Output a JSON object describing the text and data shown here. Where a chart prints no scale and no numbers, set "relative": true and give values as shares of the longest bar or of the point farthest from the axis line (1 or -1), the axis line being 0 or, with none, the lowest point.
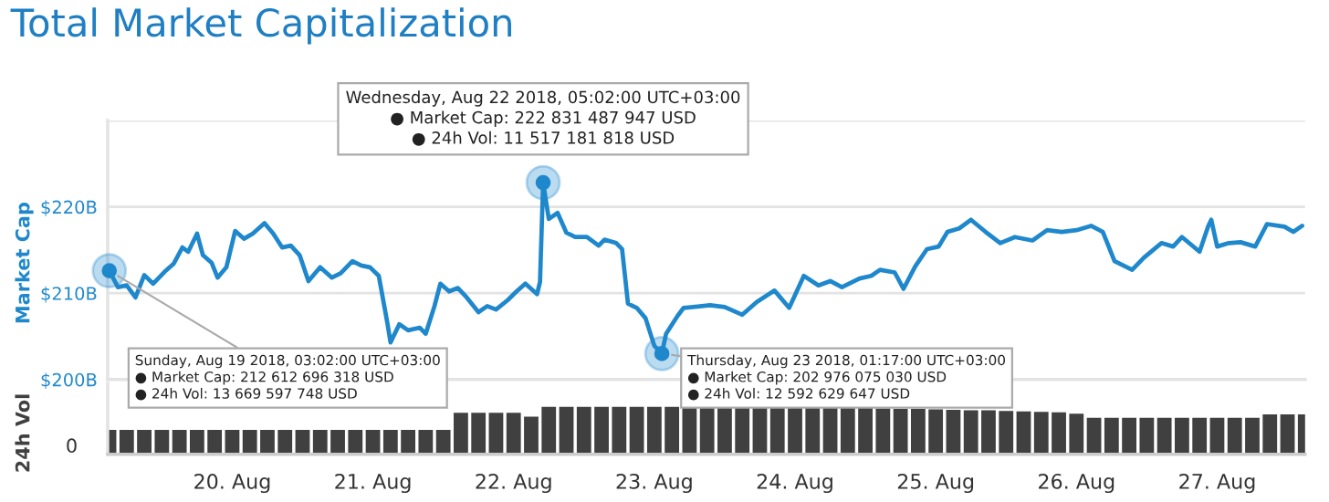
{
  "chart_data": [
    {
      "type": "line",
      "title": "Total Market Capitalization",
      "ylabel": "Market Cap",
      "tick_labels": "y",
      "grid": "y",
      "legend": false,
      "marker": "none",
      "line_style": "solid",
      "xlim": [
        "2018-08-19T02:45",
        "2018-08-27T15:00"
      ],
      "ylim": [
        200,
        230
      ],
      "yticks": [
        {
          "value": 200,
          "label": "$200B"
        },
        {
          "value": 210,
          "label": "$210B"
        },
        {
          "value": 220,
          "label": "$220B"
        },
        {
          "value": 230,
          "label": null
        }
      ],
      "series": [
        {
          "color": "#1f88cc",
          "x": [
            "2018-08-19T03:02",
            "2018-08-19T04:30",
            "2018-08-19T06:00",
            "2018-08-19T07:30",
            "2018-08-19T09:00",
            "2018-08-19T10:30",
            "2018-08-19T12:30",
            "2018-08-19T14:00",
            "2018-08-19T15:30",
            "2018-08-19T16:30",
            "2018-08-19T18:00",
            "2018-08-19T19:00",
            "2018-08-19T20:30",
            "2018-08-19T21:30",
            "2018-08-19T23:00",
            "2018-08-20T00:30",
            "2018-08-20T02:00",
            "2018-08-20T03:30",
            "2018-08-20T05:30",
            "2018-08-20T07:00",
            "2018-08-20T08:30",
            "2018-08-20T10:00",
            "2018-08-20T11:30",
            "2018-08-20T13:00",
            "2018-08-20T15:00",
            "2018-08-20T17:00",
            "2018-08-20T18:30",
            "2018-08-20T20:30",
            "2018-08-20T22:00",
            "2018-08-20T23:30",
            "2018-08-21T01:00",
            "2018-08-21T02:30",
            "2018-08-21T03:00",
            "2018-08-21T04:30",
            "2018-08-21T06:00",
            "2018-08-21T08:00",
            "2018-08-21T09:00",
            "2018-08-21T10:30",
            "2018-08-21T11:30",
            "2018-08-21T13:00",
            "2018-08-21T14:30",
            "2018-08-21T16:00",
            "2018-08-21T18:00",
            "2018-08-21T19:30",
            "2018-08-21T21:00",
            "2018-08-21T23:00",
            "2018-08-22T00:30",
            "2018-08-22T02:00",
            "2018-08-22T04:00",
            "2018-08-22T04:30",
            "2018-08-22T05:02",
            "2018-08-22T06:00",
            "2018-08-22T07:30",
            "2018-08-22T09:00",
            "2018-08-22T10:30",
            "2018-08-22T12:30",
            "2018-08-22T14:30",
            "2018-08-22T15:30",
            "2018-08-22T17:30",
            "2018-08-22T18:30",
            "2018-08-22T19:30",
            "2018-08-22T21:00",
            "2018-08-22T22:30",
            "2018-08-23T00:00",
            "2018-08-23T01:17",
            "2018-08-23T02:00",
            "2018-08-23T04:00",
            "2018-08-23T05:00",
            "2018-08-23T09:30",
            "2018-08-23T12:00",
            "2018-08-23T15:00",
            "2018-08-23T17:30",
            "2018-08-23T20:30",
            "2018-08-23T23:00",
            "2018-08-24T01:30",
            "2018-08-24T04:00",
            "2018-08-24T06:00",
            "2018-08-24T08:00",
            "2018-08-24T11:00",
            "2018-08-24T13:00",
            "2018-08-24T14:30",
            "2018-08-24T17:00",
            "2018-08-24T18:30",
            "2018-08-24T20:30",
            "2018-08-24T22:30",
            "2018-08-25T00:30",
            "2018-08-25T02:00",
            "2018-08-25T04:00",
            "2018-08-25T06:00",
            "2018-08-25T08:30",
            "2018-08-25T11:00",
            "2018-08-25T13:30",
            "2018-08-25T16:30",
            "2018-08-25T19:00",
            "2018-08-25T21:30",
            "2018-08-26T00:00",
            "2018-08-26T02:30",
            "2018-08-26T04:30",
            "2018-08-26T06:30",
            "2018-08-26T09:30",
            "2018-08-26T11:30",
            "2018-08-26T14:30",
            "2018-08-26T16:30",
            "2018-08-26T18:00",
            "2018-08-26T21:00",
            "2018-08-26T22:30",
            "2018-08-26T23:00",
            "2018-08-27T00:00",
            "2018-08-27T02:00",
            "2018-08-27T04:00",
            "2018-08-27T06:30",
            "2018-08-27T08:30",
            "2018-08-27T11:30",
            "2018-08-27T13:00",
            "2018-08-27T14:30"
          ],
          "values": [
            212.6,
            210.7,
            210.9,
            209.5,
            212.1,
            211.1,
            212.5,
            213.4,
            215.3,
            214.8,
            216.9,
            214.4,
            213.5,
            211.8,
            213.0,
            217.2,
            216.3,
            216.9,
            218.1,
            216.9,
            215.3,
            215.5,
            214.4,
            211.4,
            213.0,
            211.8,
            212.3,
            213.7,
            213.2,
            213.0,
            212.0,
            206.4,
            204.3,
            206.4,
            205.7,
            206.0,
            205.3,
            208.5,
            211.1,
            210.2,
            210.6,
            209.5,
            207.8,
            208.5,
            208.1,
            209.2,
            210.2,
            211.1,
            209.9,
            211.3,
            222.8,
            218.6,
            219.3,
            217.0,
            216.5,
            216.5,
            215.5,
            216.2,
            215.8,
            215.1,
            208.8,
            208.3,
            207.1,
            203.9,
            203.0,
            205.3,
            207.4,
            208.3,
            208.6,
            208.4,
            207.5,
            209.0,
            210.3,
            208.3,
            212.0,
            210.9,
            211.4,
            210.7,
            211.7,
            212.0,
            212.7,
            212.4,
            210.5,
            213.1,
            215.1,
            215.4,
            217.1,
            217.5,
            218.5,
            217.1,
            215.8,
            216.5,
            216.1,
            217.3,
            217.1,
            217.3,
            217.8,
            217.1,
            213.7,
            212.7,
            214.1,
            215.8,
            215.4,
            216.5,
            214.8,
            217.8,
            218.5,
            215.4,
            215.8,
            215.9,
            215.4,
            218.0,
            217.7,
            217.1,
            217.8
          ]
        }
      ],
      "annotations": [
        {
          "text": "Wednesday, Aug 22 2018, 05:02:00 UTC+03:00\n● Market Cap: 222 831 487 947 USD\n● 24h Vol: 11 517 181 818 USD",
          "x": "2018-08-22T05:02",
          "y": 222.8
        },
        {
          "text": "Sunday, Aug 19 2018, 03:02:00 UTC+03:00\n● Market Cap: 212 612 696 318 USD\n● 24h Vol: 13 669 597 748 USD",
          "x": "2018-08-19T03:02",
          "y": 212.6
        },
        {
          "text": "Thursday, Aug 23 2018, 01:17:00 UTC+03:00\n● Market Cap: 202 976 075 030 USD\n● 24h Vol: 12 592 629 647 USD",
          "x": "2018-08-23T01:17",
          "y": 203.0
        }
      ]
    },
    {
      "type": "bar",
      "ylabel": "24h Vol",
      "relative": true,
      "legend": false,
      "grid": false,
      "xlim": [
        "2018-08-19T02:45",
        "2018-08-27T15:00"
      ],
      "xticks": [
        {
          "value": "2018-08-20",
          "label": "20. Aug"
        },
        {
          "value": "2018-08-21",
          "label": "21. Aug"
        },
        {
          "value": "2018-08-22",
          "label": "22. Aug"
        },
        {
          "value": "2018-08-23",
          "label": "23. Aug"
        },
        {
          "value": "2018-08-24",
          "label": "24. Aug"
        },
        {
          "value": "2018-08-25",
          "label": "25. Aug"
        },
        {
          "value": "2018-08-26",
          "label": "26. Aug"
        },
        {
          "value": "2018-08-27",
          "label": "27. Aug"
        }
      ],
      "annotations": [
        "0"
      ],
      "x": [
        "2018-08-19T03:00",
        "2018-08-19T06:00",
        "2018-08-19T09:00",
        "2018-08-19T12:00",
        "2018-08-19T15:00",
        "2018-08-19T18:00",
        "2018-08-19T21:00",
        "2018-08-20T00:00",
        "2018-08-20T03:00",
        "2018-08-20T06:00",
        "2018-08-20T09:00",
        "2018-08-20T12:00",
        "2018-08-20T15:00",
        "2018-08-20T18:00",
        "2018-08-20T21:00",
        "2018-08-21T00:00",
        "2018-08-21T03:00",
        "2018-08-21T06:00",
        "2018-08-21T09:00",
        "2018-08-21T12:00",
        "2018-08-21T15:00",
        "2018-08-21T18:00",
        "2018-08-21T21:00",
        "2018-08-22T00:00",
        "2018-08-22T03:00",
        "2018-08-22T06:00",
        "2018-08-22T09:00",
        "2018-08-22T12:00",
        "2018-08-22T15:00",
        "2018-08-22T18:00",
        "2018-08-22T21:00",
        "2018-08-23T00:00",
        "2018-08-23T03:00",
        "2018-08-23T06:00",
        "2018-08-23T09:00",
        "2018-08-23T12:00",
        "2018-08-23T15:00",
        "2018-08-23T18:00",
        "2018-08-23T21:00",
        "2018-08-24T00:00",
        "2018-08-24T03:00",
        "2018-08-24T06:00",
        "2018-08-24T09:00",
        "2018-08-24T12:00",
        "2018-08-24T15:00",
        "2018-08-24T18:00",
        "2018-08-24T21:00",
        "2018-08-25T00:00",
        "2018-08-25T03:00",
        "2018-08-25T06:00",
        "2018-08-25T09:00",
        "2018-08-25T12:00",
        "2018-08-25T15:00",
        "2018-08-25T18:00",
        "2018-08-25T21:00",
        "2018-08-26T00:00",
        "2018-08-26T03:00",
        "2018-08-26T06:00",
        "2018-08-26T09:00",
        "2018-08-26T12:00",
        "2018-08-26T15:00",
        "2018-08-26T18:00",
        "2018-08-26T21:00",
        "2018-08-27T00:00",
        "2018-08-27T03:00",
        "2018-08-27T06:00",
        "2018-08-27T09:00",
        "2018-08-27T12:00",
        "2018-08-27T15:00"
      ],
      "series": [
        {
          "color": "#404040",
          "values": [
            0.5,
            0.5,
            0.5,
            0.5,
            0.5,
            0.5,
            0.5,
            0.5,
            0.5,
            0.5,
            0.5,
            0.5,
            0.5,
            0.5,
            0.5,
            0.5,
            0.5,
            0.5,
            0.5,
            0.5,
            0.85,
            0.85,
            0.85,
            0.85,
            0.77,
            0.97,
            0.97,
            0.97,
            0.97,
            0.97,
            0.97,
            0.97,
            0.97,
            1.0,
            1.0,
            0.99,
            0.99,
            0.98,
            0.98,
            0.97,
            0.97,
            0.96,
            0.95,
            0.95,
            0.94,
            0.93,
            0.93,
            0.92,
            0.91,
            0.9,
            0.9,
            0.89,
            0.88,
            0.87,
            0.86,
            0.83,
            0.75,
            0.75,
            0.75,
            0.75,
            0.75,
            0.75,
            0.75,
            0.75,
            0.75,
            0.75,
            0.82,
            0.82,
            0.82
          ]
        }
      ]
    }
  ]
}
